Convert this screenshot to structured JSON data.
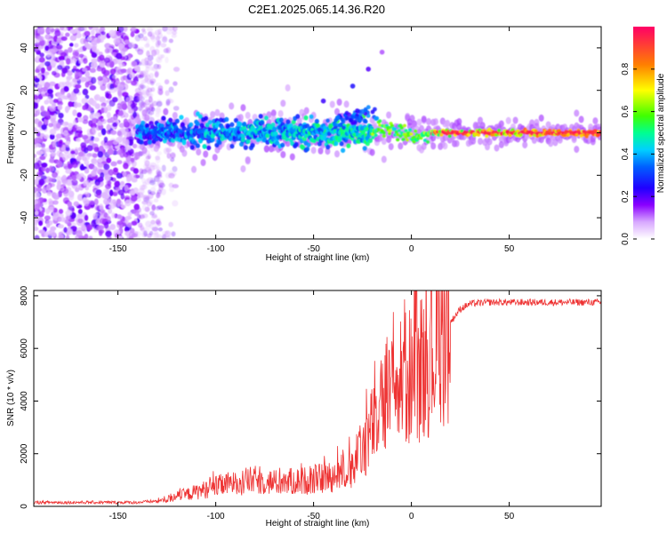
{
  "title": "C2E1.2025.065.14.36.R20",
  "chart_data": [
    {
      "type": "heatmap",
      "xlabel": "Height of straight line (km)",
      "ylabel": "Frequency (Hz)",
      "xlim": [
        -193,
        97
      ],
      "ylim": [
        -50,
        50
      ],
      "xticks": [
        -150,
        -100,
        -50,
        0,
        50
      ],
      "yticks": [
        -40,
        -20,
        0,
        20,
        40
      ],
      "colorbar": {
        "label": "Normalized spectral amplitude",
        "range": [
          0,
          1
        ],
        "ticks": [
          "0.0",
          "0.2",
          "0.4",
          "0.6",
          "0.8"
        ],
        "colors": [
          "#ffffff",
          "#c080ff",
          "#7000ff",
          "#0000ff",
          "#00c0ff",
          "#00ff80",
          "#80ff00",
          "#ffff00",
          "#ff8000",
          "#ff0060"
        ]
      },
      "features": {
        "noise_region_x": [
          -193,
          -128
        ],
        "main_band_center_hz": 0,
        "secondary_branch": [
          [
            -40,
            8
          ],
          [
            -20,
            12
          ]
        ]
      }
    },
    {
      "type": "line",
      "xlabel": "Height of straight line (km)",
      "ylabel": "SNR (10 * v/v)",
      "xlim": [
        -193,
        97
      ],
      "ylim": [
        0,
        8200
      ],
      "xticks": [
        -150,
        -100,
        -50,
        0,
        50
      ],
      "yticks": [
        0,
        2000,
        4000,
        6000,
        8000
      ],
      "color": "#ee3333",
      "profile": {
        "x": [
          -193,
          -140,
          -130,
          -120,
          -110,
          -100,
          -90,
          -80,
          -70,
          -60,
          -50,
          -40,
          -30,
          -25,
          -20,
          -15,
          -10,
          -5,
          0,
          5,
          10,
          15,
          20,
          25,
          30,
          40,
          50,
          60,
          70,
          80,
          90,
          97
        ],
        "y": [
          150,
          150,
          200,
          350,
          550,
          750,
          900,
          1000,
          900,
          950,
          1000,
          1150,
          1500,
          2200,
          3000,
          3700,
          4200,
          4700,
          5000,
          5300,
          5800,
          6400,
          7000,
          7500,
          7700,
          7750,
          7750,
          7750,
          7750,
          7750,
          7750,
          7750
        ]
      }
    }
  ]
}
